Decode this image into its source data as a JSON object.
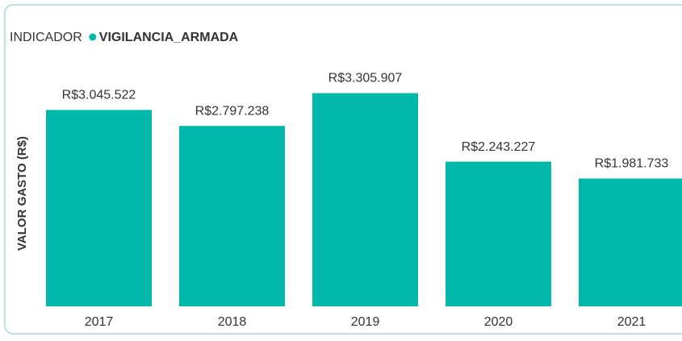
{
  "chart_data": {
    "type": "bar",
    "legend_title": "INDICADOR",
    "series": [
      {
        "name": "VIGILANCIA_ARMADA",
        "color": "#01b8aa",
        "values": [
          3045522,
          2797238,
          3305907,
          2243227,
          1981733
        ],
        "value_labels": [
          "R$3.045.522",
          "R$2.797.238",
          "R$3.305.907",
          "R$2.243.227",
          "R$1.981.733"
        ]
      }
    ],
    "categories": [
      "2017",
      "2018",
      "2019",
      "2020",
      "2021"
    ],
    "y_label": "VALOR GASTO (R$)",
    "ylim": [
      0,
      3750000
    ],
    "legend_position": "top-left"
  }
}
